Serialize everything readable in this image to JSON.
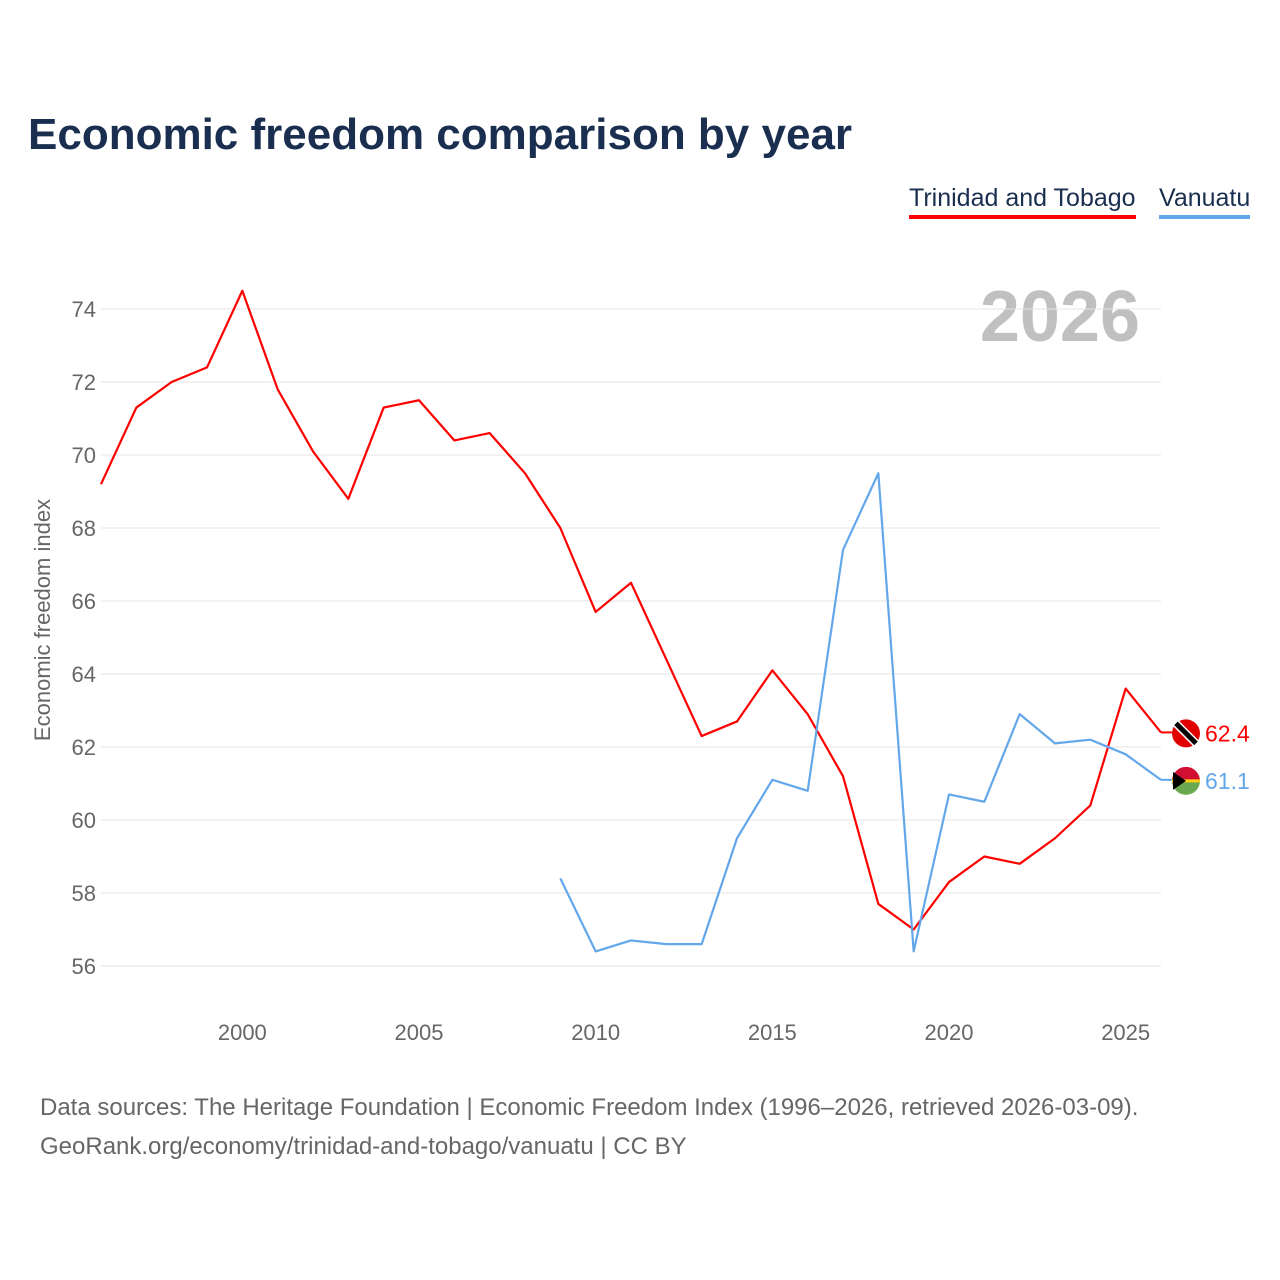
{
  "chart_data": {
    "type": "line",
    "title": "Economic freedom comparison by year",
    "ylabel": "Economic freedom index",
    "xlabel": "",
    "watermark_year": "2026",
    "xlim": [
      1996,
      2026
    ],
    "ylim": [
      56,
      74
    ],
    "x_ticks": [
      2000,
      2005,
      2010,
      2015,
      2020,
      2025
    ],
    "y_ticks": [
      56,
      58,
      60,
      62,
      64,
      66,
      68,
      70,
      72,
      74
    ],
    "grid": true,
    "legend_position": "top-right",
    "series": [
      {
        "name": "Trinidad and Tobago",
        "color": "#ff0000",
        "end_label": "62.4",
        "x": [
          1996,
          1997,
          1998,
          1999,
          2000,
          2001,
          2002,
          2003,
          2004,
          2005,
          2006,
          2007,
          2008,
          2009,
          2010,
          2011,
          2012,
          2013,
          2014,
          2015,
          2016,
          2017,
          2018,
          2019,
          2020,
          2021,
          2022,
          2023,
          2024,
          2025,
          2026
        ],
        "values": [
          69.2,
          71.3,
          72.0,
          72.4,
          74.5,
          71.8,
          70.1,
          68.8,
          71.3,
          71.5,
          70.4,
          70.6,
          69.5,
          68.0,
          65.7,
          66.5,
          64.4,
          62.3,
          62.7,
          64.1,
          62.9,
          61.2,
          57.7,
          57.0,
          58.3,
          59.0,
          58.8,
          59.5,
          60.4,
          63.6,
          62.4
        ]
      },
      {
        "name": "Vanuatu",
        "color": "#63a7eb",
        "end_label": "61.1",
        "x": [
          2009,
          2010,
          2011,
          2012,
          2013,
          2014,
          2015,
          2016,
          2017,
          2018,
          2019,
          2020,
          2021,
          2022,
          2023,
          2024,
          2025,
          2026
        ],
        "values": [
          58.4,
          56.4,
          56.7,
          56.6,
          56.6,
          59.5,
          61.1,
          60.8,
          67.4,
          69.5,
          56.4,
          60.7,
          60.5,
          62.9,
          62.1,
          62.2,
          61.8,
          61.1
        ]
      }
    ]
  },
  "footer": {
    "line1": "Data sources: The Heritage Foundation | Economic Freedom Index (1996–2026, retrieved 2026-03-09).",
    "line2": "GeoRank.org/economy/trinidad-and-tobago/vanuatu | CC BY"
  }
}
